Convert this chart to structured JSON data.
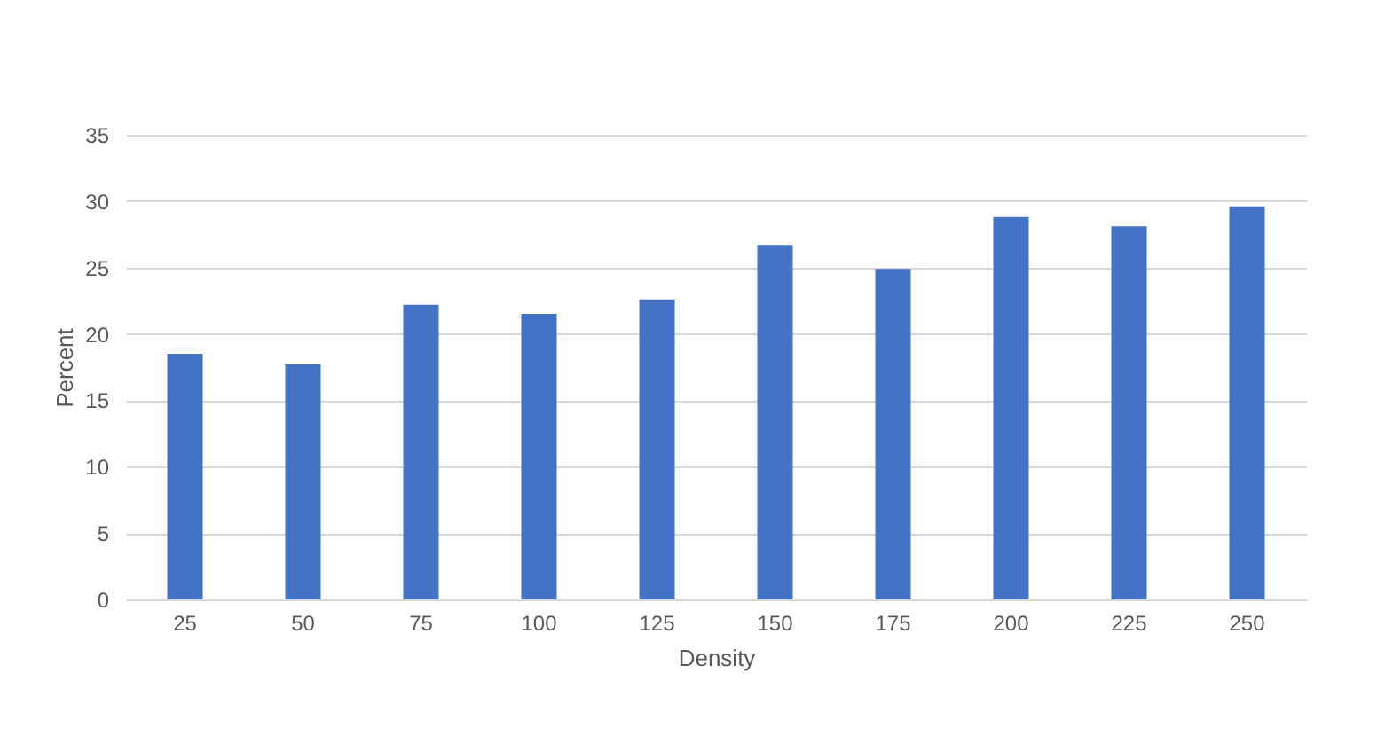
{
  "chart_data": {
    "type": "bar",
    "xlabel": "Density",
    "ylabel": "Percent",
    "categories": [
      "25",
      "50",
      "75",
      "100",
      "125",
      "150",
      "175",
      "200",
      "225",
      "250"
    ],
    "values": [
      18.5,
      17.7,
      22.2,
      21.5,
      22.6,
      26.7,
      24.9,
      28.8,
      28.1,
      29.6
    ],
    "color": "#4472c4",
    "ylim": [
      0,
      35
    ],
    "yticks": [
      0,
      5,
      10,
      15,
      20,
      25,
      30,
      35
    ],
    "grid": "y"
  }
}
